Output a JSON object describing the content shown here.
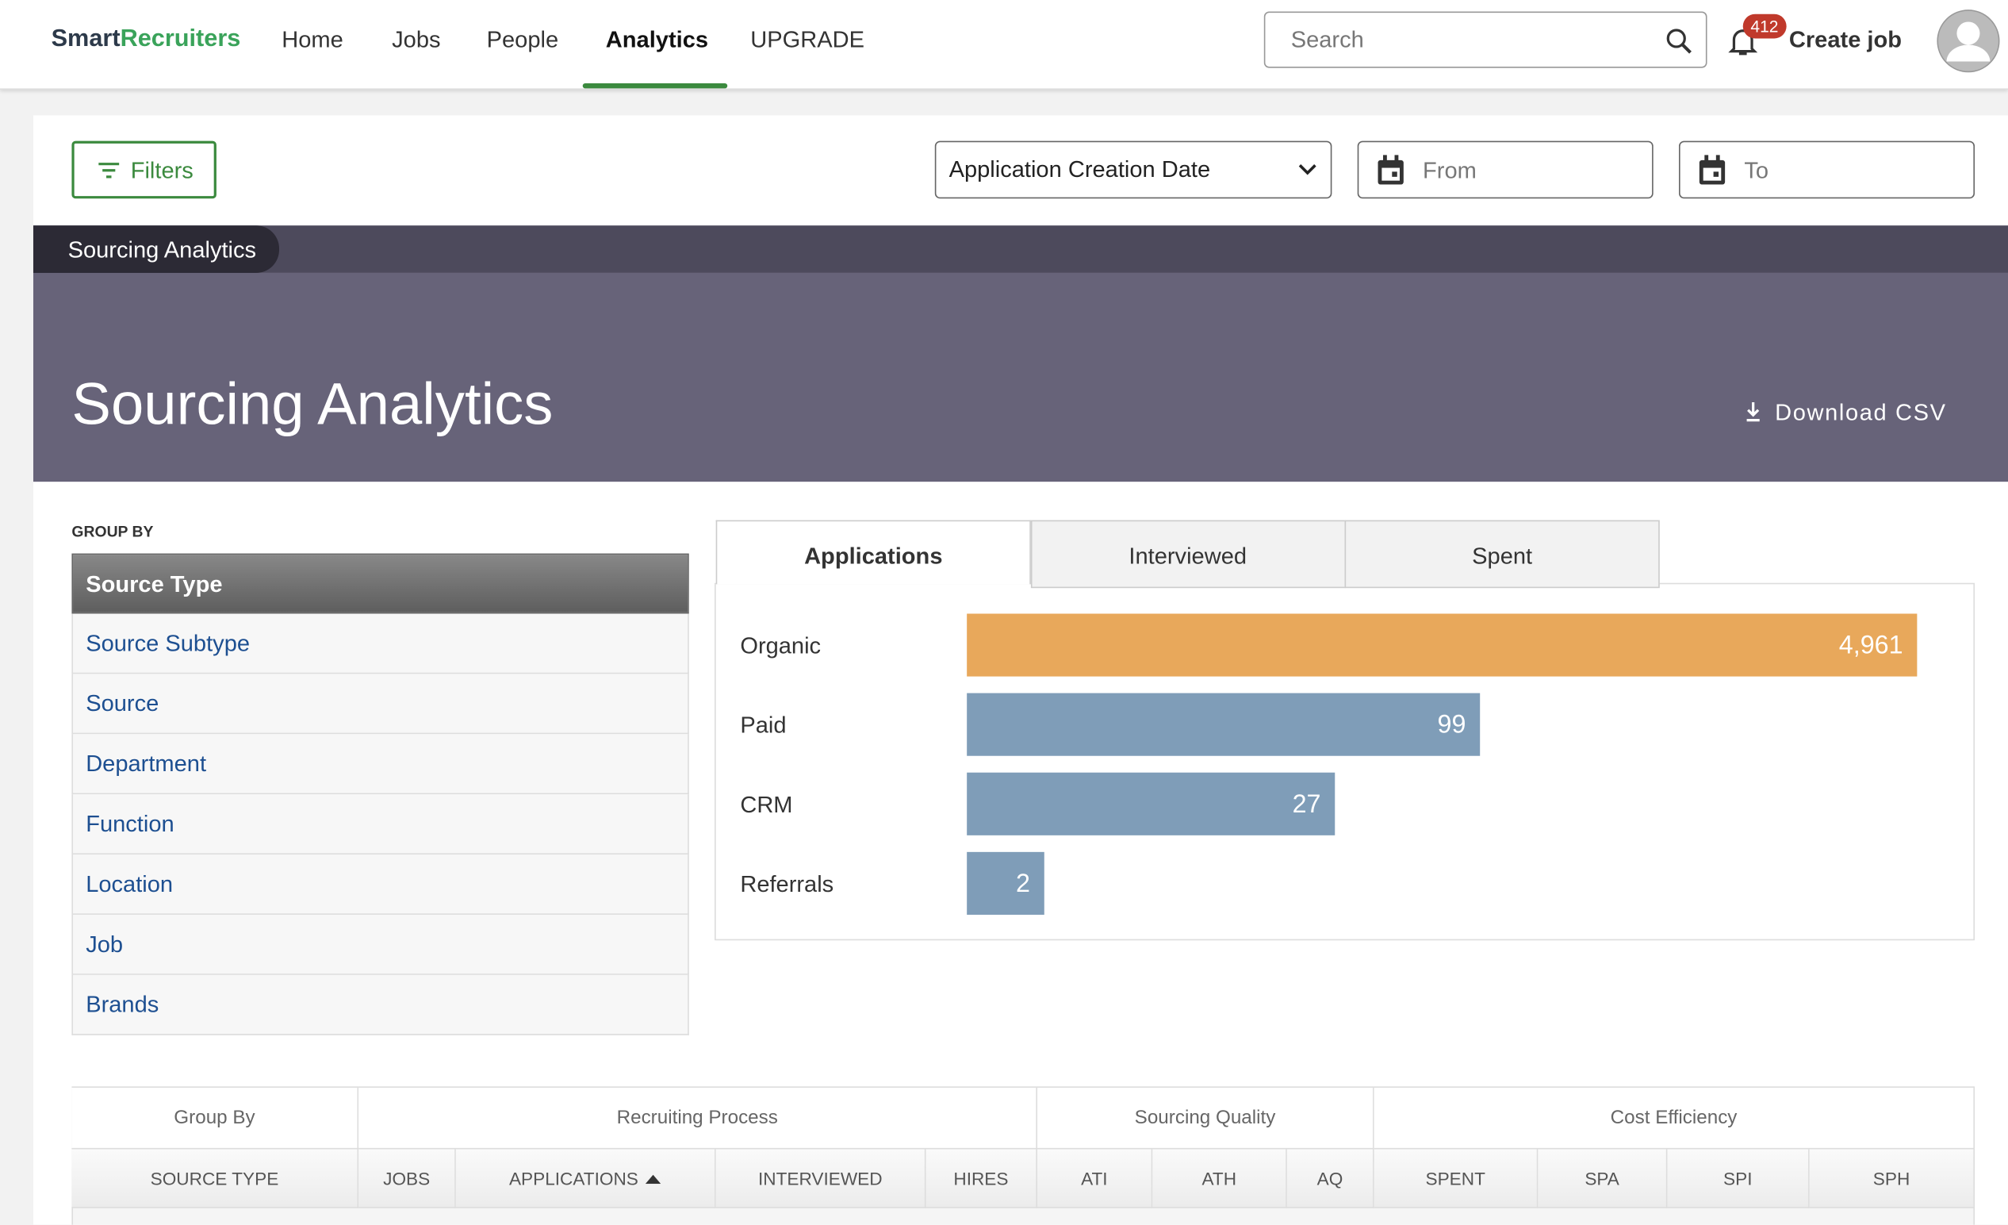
{
  "nav": {
    "logo_main": "Smart",
    "logo_accent": "Recruiters",
    "items": [
      "Home",
      "Jobs",
      "People",
      "Analytics",
      "UPGRADE"
    ],
    "search_placeholder": "Search",
    "notification_count": "412",
    "create_job": "Create job"
  },
  "toolbar": {
    "filters": "Filters",
    "date_type": "Application Creation Date",
    "from": "From",
    "to": "To"
  },
  "breadcrumb": "Sourcing Analytics",
  "banner": {
    "title": "Sourcing Analytics",
    "download": "Download CSV"
  },
  "group_by": {
    "label": "GROUP BY",
    "options": [
      "Source Type",
      "Source Subtype",
      "Source",
      "Department",
      "Function",
      "Location",
      "Job",
      "Brands"
    ]
  },
  "tabs": [
    "Applications",
    "Interviewed",
    "Spent"
  ],
  "chart_data": {
    "type": "bar",
    "orientation": "horizontal",
    "log_scale": true,
    "categories": [
      "Organic",
      "Paid",
      "CRM",
      "Referrals"
    ],
    "values": [
      4961,
      99,
      27,
      2
    ],
    "value_labels": [
      "4,961",
      "99",
      "27",
      "2"
    ],
    "colors": [
      "#e8a85b",
      "#7f9db8",
      "#7f9db8",
      "#7f9db8"
    ]
  },
  "table": {
    "groups": [
      "Group By",
      "Recruiting Process",
      "Sourcing Quality",
      "Cost Efficiency"
    ],
    "columns": [
      "SOURCE TYPE",
      "JOBS",
      "APPLICATIONS",
      "INTERVIEWED",
      "HIRES",
      "ATI",
      "ATH",
      "AQ",
      "SPENT",
      "SPA",
      "SPI",
      "SPH"
    ]
  }
}
